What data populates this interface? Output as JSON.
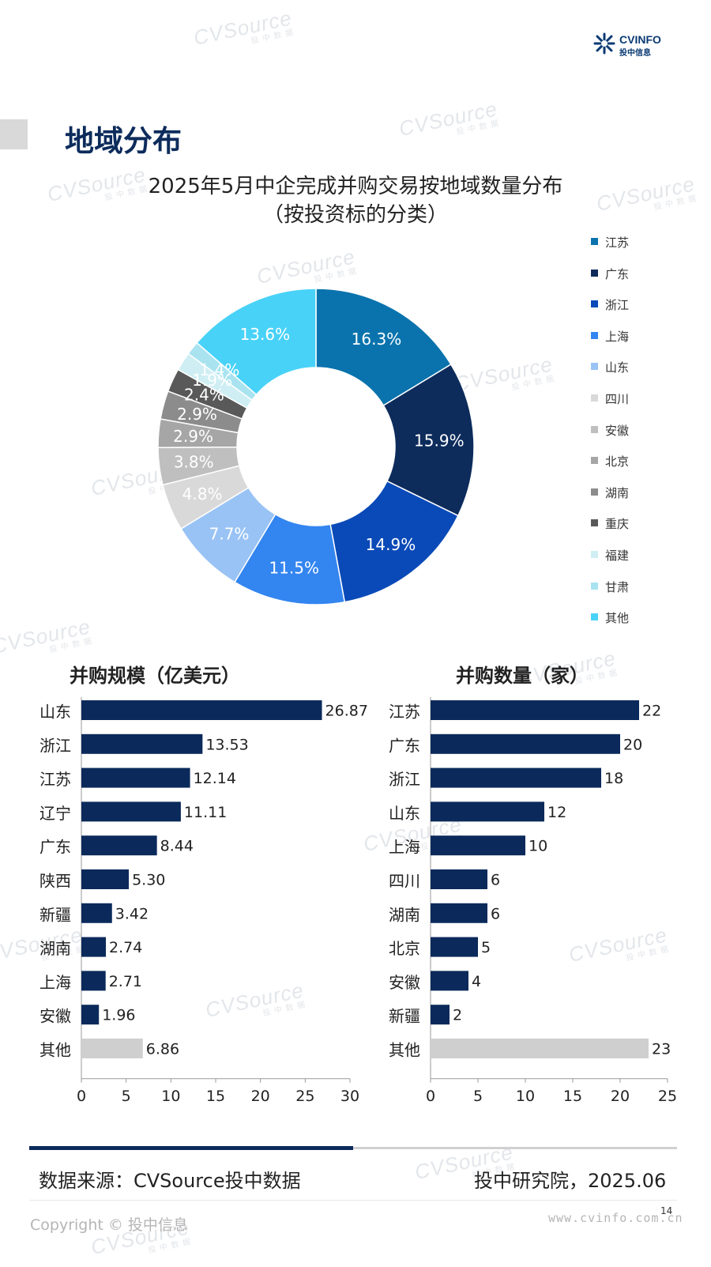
{
  "header": {
    "logo_en": "CVINFO",
    "logo_cn": "投中信息",
    "page_title": "地域分布"
  },
  "watermark": {
    "text": "CVSource",
    "sub": "投 中 数 据"
  },
  "colors": {
    "navy": "#0d2c5c",
    "bar": "#0b2a5b",
    "other_bar": "#cfcfcf"
  },
  "chart_data": [
    {
      "type": "pie",
      "title": "2025年5月中企完成并购交易按地域数量分布",
      "subtitle": "（按投资标的分类）",
      "donut": true,
      "legend_position": "right",
      "categories": [
        "江苏",
        "广东",
        "浙江",
        "上海",
        "山东",
        "四川",
        "安徽",
        "北京",
        "湖南",
        "重庆",
        "福建",
        "甘肃",
        "其他"
      ],
      "values": [
        16.3,
        15.9,
        14.9,
        11.5,
        7.7,
        4.8,
        3.8,
        2.9,
        2.9,
        2.4,
        1.9,
        1.4,
        13.6
      ],
      "labels": [
        "16.3%",
        "15.9%",
        "14.9%",
        "11.5%",
        "7.7%",
        "4.8%",
        "3.8%",
        "2.9%",
        "2.9%",
        "2.4%",
        "1.9%",
        "1.4%",
        "13.6%"
      ],
      "colors": [
        "#0a73ad",
        "#0d2c5c",
        "#0a4ab8",
        "#3385f0",
        "#99c3f5",
        "#d9d9d9",
        "#bfbfbf",
        "#a6a6a6",
        "#8c8c8c",
        "#595959",
        "#cfeef4",
        "#a9e3f0",
        "#49d2f7"
      ]
    },
    {
      "type": "bar",
      "orientation": "horizontal",
      "title": "并购规模（亿美元）",
      "categories": [
        "山东",
        "浙江",
        "江苏",
        "辽宁",
        "广东",
        "陕西",
        "新疆",
        "湖南",
        "上海",
        "安徽",
        "其他"
      ],
      "values": [
        26.87,
        13.53,
        12.14,
        11.11,
        8.44,
        5.3,
        3.42,
        2.74,
        2.71,
        1.96,
        6.86
      ],
      "value_labels": [
        "26.87",
        "13.53",
        "12.14",
        "11.11",
        "8.44",
        "5.30",
        "3.42",
        "2.74",
        "2.71",
        "1.96",
        "6.86"
      ],
      "xlim": [
        0,
        30
      ],
      "ticks": [
        "0",
        "5",
        "10",
        "15",
        "20",
        "25",
        "30"
      ],
      "grid": false
    },
    {
      "type": "bar",
      "orientation": "horizontal",
      "title": "并购数量（家）",
      "categories": [
        "江苏",
        "广东",
        "浙江",
        "山东",
        "上海",
        "四川",
        "湖南",
        "北京",
        "安徽",
        "新疆",
        "其他"
      ],
      "values": [
        22,
        20,
        18,
        12,
        10,
        6,
        6,
        5,
        4,
        2,
        23
      ],
      "value_labels": [
        "22",
        "20",
        "18",
        "12",
        "10",
        "6",
        "6",
        "5",
        "4",
        "2",
        "23"
      ],
      "xlim": [
        0,
        25
      ],
      "ticks": [
        "0",
        "5",
        "10",
        "15",
        "20",
        "25"
      ],
      "grid": false
    }
  ],
  "footer": {
    "source": "数据来源：CVSource投中数据",
    "institute": "投中研究院，2025.06",
    "page_number": "14",
    "copyright": "Copyright © 投中信息",
    "website": "www.cvinfo.com.cn"
  }
}
